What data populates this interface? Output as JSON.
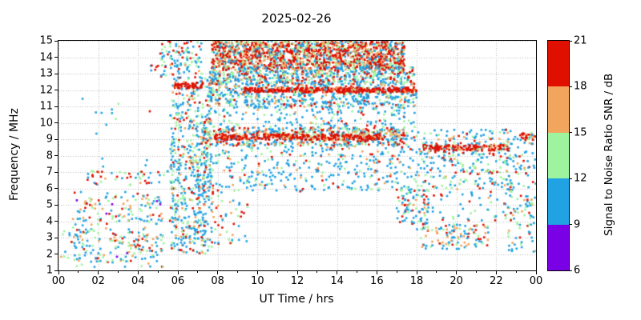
{
  "chart_data": {
    "type": "scatter",
    "title": "2025-02-26",
    "xlabel": "UT Time / hrs",
    "ylabel": "Frequency / MHz",
    "xlim": [
      0,
      24
    ],
    "ylim": [
      1,
      15
    ],
    "grid": "dotted",
    "marker_size_px": 2.6,
    "x_ticks": [
      {
        "v": 0,
        "label": "00"
      },
      {
        "v": 2,
        "label": "02"
      },
      {
        "v": 4,
        "label": "04"
      },
      {
        "v": 6,
        "label": "06"
      },
      {
        "v": 8,
        "label": "08"
      },
      {
        "v": 10,
        "label": "10"
      },
      {
        "v": 12,
        "label": "12"
      },
      {
        "v": 14,
        "label": "14"
      },
      {
        "v": 16,
        "label": "16"
      },
      {
        "v": 18,
        "label": "18"
      },
      {
        "v": 20,
        "label": "20"
      },
      {
        "v": 22,
        "label": "22"
      },
      {
        "v": 24,
        "label": "00"
      }
    ],
    "y_ticks": [
      1,
      2,
      3,
      4,
      5,
      6,
      7,
      8,
      9,
      10,
      11,
      12,
      13,
      14,
      15
    ],
    "palette": {
      "purple": "#7a00e6",
      "blue": "#21a2e2",
      "green": "#9ef49e",
      "orange": "#f2a55c",
      "red": "#e01000"
    },
    "colorbar": {
      "label": "Signal to Noise Ratio SNR / dB",
      "ticks": [
        6,
        9,
        12,
        15,
        18,
        21
      ],
      "min": 6,
      "max": 21,
      "bands": [
        {
          "min": 6,
          "max": 9,
          "color": "purple"
        },
        {
          "min": 9,
          "max": 12,
          "color": "blue"
        },
        {
          "min": 12,
          "max": 15,
          "color": "green"
        },
        {
          "min": 15,
          "max": 18,
          "color": "orange"
        },
        {
          "min": 18,
          "max": 21,
          "color": "red"
        }
      ]
    },
    "regions": [
      {
        "name": "pre-dawn sparse",
        "x": [
          0.1,
          1.6
        ],
        "y": [
          1.6,
          4.6
        ],
        "n": 35,
        "w": {
          "blue": 0.5,
          "green": 0.25,
          "orange": 0.1,
          "red": 0.15
        }
      },
      {
        "name": "night cluster low",
        "x": [
          0.8,
          5.3
        ],
        "y": [
          1.2,
          5.8
        ],
        "n": 270,
        "w": {
          "purple": 0.02,
          "blue": 0.44,
          "green": 0.26,
          "orange": 0.13,
          "red": 0.15
        }
      },
      {
        "name": "night 6-7 MHz band",
        "x": [
          1.4,
          5.6
        ],
        "y": [
          6.2,
          7.1
        ],
        "n": 48,
        "w": {
          "blue": 0.38,
          "green": 0.27,
          "orange": 0.1,
          "red": 0.25
        }
      },
      {
        "name": "night upper sparse",
        "x": [
          0.3,
          5.0
        ],
        "y": [
          7.3,
          12.0
        ],
        "n": 14,
        "w": {
          "blue": 0.6,
          "green": 0.3,
          "red": 0.1
        }
      },
      {
        "name": "pre-dawn 13 MHz dots",
        "x": [
          4.6,
          5.4
        ],
        "y": [
          12.5,
          13.6
        ],
        "n": 10,
        "w": {
          "blue": 0.5,
          "green": 0.2,
          "red": 0.3
        }
      },
      {
        "name": "dawn column",
        "x": [
          5.6,
          7.7
        ],
        "y": [
          2.0,
          12.8
        ],
        "n": 560,
        "w": {
          "blue": 0.52,
          "green": 0.22,
          "orange": 0.1,
          "red": 0.16
        }
      },
      {
        "name": "dawn top sparse",
        "x": [
          5.0,
          7.2
        ],
        "y": [
          12.8,
          15.0
        ],
        "n": 100,
        "w": {
          "blue": 0.45,
          "green": 0.25,
          "orange": 0.1,
          "red": 0.2
        }
      },
      {
        "name": "dawn red dash 12.3 MHz",
        "x": [
          5.8,
          7.3
        ],
        "y": [
          12.1,
          12.45
        ],
        "n": 55,
        "w": {
          "orange": 0.05,
          "red": 0.95
        }
      },
      {
        "name": "day top band red-dense",
        "x": [
          7.7,
          17.4
        ],
        "y": [
          13.3,
          15.0
        ],
        "n": 1500,
        "w": {
          "blue": 0.2,
          "green": 0.2,
          "orange": 0.15,
          "red": 0.45
        }
      },
      {
        "name": "day 12.3-13.4 mixed",
        "x": [
          7.6,
          17.9
        ],
        "y": [
          12.3,
          13.4
        ],
        "n": 700,
        "w": {
          "blue": 0.42,
          "green": 0.22,
          "orange": 0.12,
          "red": 0.24
        }
      },
      {
        "name": "day 11-12.3 blue band",
        "x": [
          7.5,
          18.0
        ],
        "y": [
          10.9,
          12.3
        ],
        "n": 550,
        "w": {
          "blue": 0.6,
          "green": 0.2,
          "orange": 0.08,
          "red": 0.12
        }
      },
      {
        "name": "day red line 12 MHz",
        "x": [
          9.3,
          18.0
        ],
        "y": [
          11.85,
          12.15
        ],
        "n": 380,
        "w": {
          "blue": 0.05,
          "green": 0.05,
          "orange": 0.1,
          "red": 0.8
        }
      },
      {
        "name": "day mid scatter",
        "x": [
          6.9,
          18.0
        ],
        "y": [
          5.8,
          10.9
        ],
        "n": 700,
        "w": {
          "blue": 0.62,
          "green": 0.18,
          "orange": 0.1,
          "red": 0.1
        }
      },
      {
        "name": "day 9 MHz band",
        "x": [
          7.2,
          17.5
        ],
        "y": [
          8.6,
          9.7
        ],
        "n": 500,
        "w": {
          "blue": 0.3,
          "green": 0.22,
          "orange": 0.22,
          "red": 0.26
        }
      },
      {
        "name": "day 9 MHz red core",
        "x": [
          7.8,
          16.3
        ],
        "y": [
          8.95,
          9.3
        ],
        "n": 280,
        "w": {
          "orange": 0.12,
          "red": 0.88
        }
      },
      {
        "name": "day low sparse",
        "x": [
          6.5,
          9.6
        ],
        "y": [
          2.5,
          5.8
        ],
        "n": 70,
        "w": {
          "blue": 0.45,
          "green": 0.2,
          "orange": 0.12,
          "red": 0.23
        }
      },
      {
        "name": "dusk low 17-18.5",
        "x": [
          17.0,
          18.6
        ],
        "y": [
          3.5,
          6.0
        ],
        "n": 80,
        "w": {
          "blue": 0.5,
          "green": 0.2,
          "orange": 0.1,
          "red": 0.2
        }
      },
      {
        "name": "evening 6-9.5 MHz",
        "x": [
          18.0,
          23.1
        ],
        "y": [
          5.8,
          9.6
        ],
        "n": 300,
        "w": {
          "blue": 0.55,
          "green": 0.25,
          "orange": 0.1,
          "red": 0.1
        }
      },
      {
        "name": "evening red line 8.5",
        "x": [
          18.3,
          22.6
        ],
        "y": [
          8.3,
          8.65
        ],
        "n": 150,
        "w": {
          "blue": 0.05,
          "green": 0.1,
          "orange": 0.1,
          "red": 0.75
        }
      },
      {
        "name": "evening low cluster",
        "x": [
          18.2,
          21.6
        ],
        "y": [
          2.3,
          3.8
        ],
        "n": 110,
        "w": {
          "blue": 0.34,
          "green": 0.24,
          "orange": 0.2,
          "red": 0.22
        }
      },
      {
        "name": "evening 4-6 sparse",
        "x": [
          17.3,
          23.8
        ],
        "y": [
          4.0,
          5.8
        ],
        "n": 80,
        "w": {
          "blue": 0.5,
          "green": 0.25,
          "orange": 0.1,
          "red": 0.15
        }
      },
      {
        "name": "late right sparse",
        "x": [
          22.5,
          24.0
        ],
        "y": [
          2.0,
          9.5
        ],
        "n": 110,
        "w": {
          "blue": 0.5,
          "green": 0.2,
          "orange": 0.12,
          "red": 0.18
        }
      },
      {
        "name": "right edge 9 MHz red",
        "x": [
          23.2,
          24.0
        ],
        "y": [
          8.9,
          9.4
        ],
        "n": 30,
        "w": {
          "blue": 0.15,
          "green": 0.15,
          "orange": 0.1,
          "red": 0.6
        }
      }
    ]
  }
}
